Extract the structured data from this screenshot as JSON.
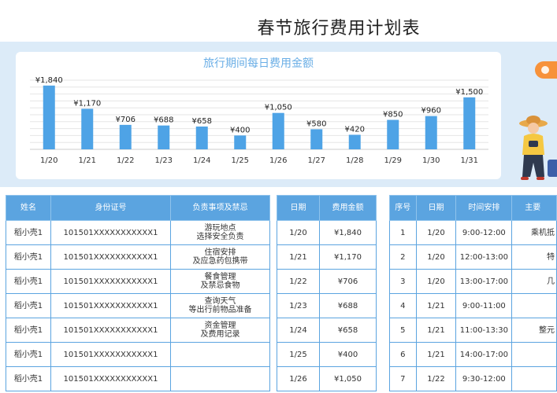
{
  "title": "春节旅行费用计划表",
  "chart_data": {
    "type": "bar",
    "title": "旅行期间每日费用金额",
    "categories": [
      "1/20",
      "1/21",
      "1/22",
      "1/23",
      "1/24",
      "1/25",
      "1/26",
      "1/27",
      "1/28",
      "1/29",
      "1/30",
      "1/31"
    ],
    "values": [
      1840,
      1170,
      706,
      688,
      658,
      400,
      1050,
      580,
      420,
      850,
      960,
      1500
    ],
    "value_labels": [
      "¥1,840",
      "¥1,170",
      "¥706",
      "¥688",
      "¥658",
      "¥400",
      "¥1,050",
      "¥580",
      "¥420",
      "¥850",
      "¥960",
      "¥1,500"
    ],
    "ylim": [
      0,
      2000
    ],
    "bar_color": "#4ea3e6",
    "grid": true,
    "legend": "none"
  },
  "people_table": {
    "headers": [
      "姓名",
      "身份证号",
      "负责事项及禁忌"
    ],
    "rows": [
      {
        "name": "稻小壳1",
        "id": "101501XXXXXXXXXXX1",
        "duty1": "游玩地点",
        "duty2": "选择安全负责"
      },
      {
        "name": "稻小壳1",
        "id": "101501XXXXXXXXXXX1",
        "duty1": "住宿安排",
        "duty2": "及应急药包携带"
      },
      {
        "name": "稻小壳1",
        "id": "101501XXXXXXXXXXX1",
        "duty1": "餐食管理",
        "duty2": "及禁忌食物"
      },
      {
        "name": "稻小壳1",
        "id": "101501XXXXXXXXXXX1",
        "duty1": "查询天气",
        "duty2": "等出行前物品准备"
      },
      {
        "name": "稻小壳1",
        "id": "101501XXXXXXXXXXX1",
        "duty1": "资金管理",
        "duty2": "及费用记录"
      },
      {
        "name": "稻小壳1",
        "id": "101501XXXXXXXXXXX1",
        "duty1": "",
        "duty2": ""
      },
      {
        "name": "稻小壳1",
        "id": "101501XXXXXXXXXXX1",
        "duty1": "",
        "duty2": ""
      }
    ]
  },
  "cost_table": {
    "headers": [
      "日期",
      "费用金额"
    ],
    "rows": [
      {
        "date": "1/20",
        "amount": "¥1,840"
      },
      {
        "date": "1/21",
        "amount": "¥1,170"
      },
      {
        "date": "1/22",
        "amount": "¥706"
      },
      {
        "date": "1/23",
        "amount": "¥688"
      },
      {
        "date": "1/24",
        "amount": "¥658"
      },
      {
        "date": "1/25",
        "amount": "¥400"
      },
      {
        "date": "1/26",
        "amount": "¥1,050"
      }
    ]
  },
  "schedule_table": {
    "headers": [
      "序号",
      "日期",
      "时间安排",
      "主要"
    ],
    "rows": [
      {
        "no": "1",
        "date": "1/20",
        "time": "9:00-12:00",
        "main": "乘机抵"
      },
      {
        "no": "2",
        "date": "1/20",
        "time": "12:00-13:00",
        "main": "特"
      },
      {
        "no": "3",
        "date": "1/20",
        "time": "13:00-17:00",
        "main": "几"
      },
      {
        "no": "4",
        "date": "1/21",
        "time": "9:00-11:00",
        "main": ""
      },
      {
        "no": "5",
        "date": "1/21",
        "time": "11:00-13:30",
        "main": "整元"
      },
      {
        "no": "6",
        "date": "1/21",
        "time": "14:00-17:00",
        "main": ""
      },
      {
        "no": "7",
        "date": "1/22",
        "time": "9:30-12:00",
        "main": ""
      }
    ]
  }
}
